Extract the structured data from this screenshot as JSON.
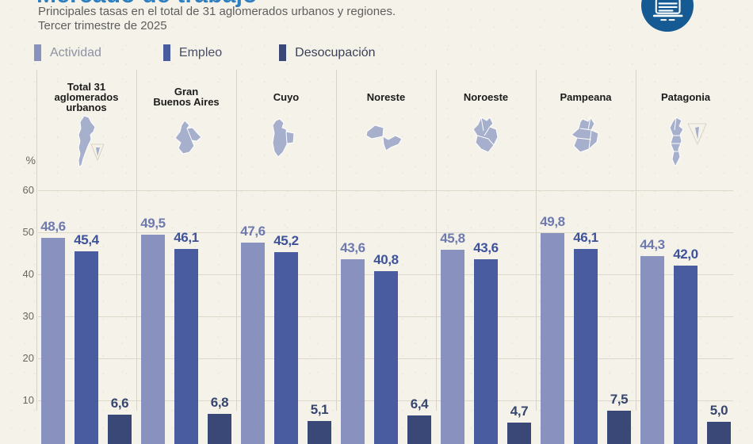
{
  "header": {
    "title": "Mercado de trabajo",
    "subtitle_line1": "Principales tasas en el total de 31 aglomerados urbanos y regiones.",
    "subtitle_line2": "Tercer trimestre de 2025",
    "logo_icon": "document-chart-icon",
    "title_color": "#2E7FBF",
    "logo_color": "#155A92"
  },
  "legend": [
    {
      "label": "Actividad",
      "color": "#8992BE"
    },
    {
      "label": "Empleo",
      "color": "#4A5CA0"
    },
    {
      "label": "Desocupación",
      "color": "#3A4878"
    }
  ],
  "chart_data": {
    "type": "bar",
    "unit_label": "%",
    "decimal_separator": ",",
    "y_ticks": [
      60,
      50,
      40,
      30,
      20,
      10
    ],
    "ylim": [
      0,
      65
    ],
    "grid": true,
    "categories": [
      "Total 31 aglomerados urbanos",
      "Gran Buenos Aires",
      "Cuyo",
      "Noreste",
      "Noroeste",
      "Pampeana",
      "Patagonia"
    ],
    "category_lines": [
      [
        "Total 31",
        "aglomerados",
        "urbanos"
      ],
      [
        "Gran",
        "Buenos Aires"
      ],
      [
        "Cuyo"
      ],
      [
        "Noreste"
      ],
      [
        "Noroeste"
      ],
      [
        "Pampeana"
      ],
      [
        "Patagonia"
      ]
    ],
    "map_icons": [
      "map-argentina-icon",
      "map-gran-buenos-aires-icon",
      "map-cuyo-icon",
      "map-noreste-icon",
      "map-noroeste-icon",
      "map-pampeana-icon",
      "map-patagonia-icon"
    ],
    "series": [
      {
        "name": "Actividad",
        "color": "#8992BE",
        "label_color": "#6E7AAE",
        "values": [
          48.6,
          49.5,
          47.6,
          43.6,
          45.8,
          49.8,
          44.3
        ]
      },
      {
        "name": "Empleo",
        "color": "#4A5CA0",
        "label_color": "#3D529B",
        "values": [
          45.4,
          46.1,
          45.2,
          40.8,
          43.6,
          46.1,
          42.0
        ]
      },
      {
        "name": "Desocupación",
        "color": "#3A4878",
        "label_color": "#37466F",
        "values": [
          6.6,
          6.8,
          5.1,
          6.4,
          4.7,
          7.5,
          5.0
        ]
      }
    ],
    "map_color": "#A6AFCC",
    "gridline_color": "#DCD8CA"
  }
}
